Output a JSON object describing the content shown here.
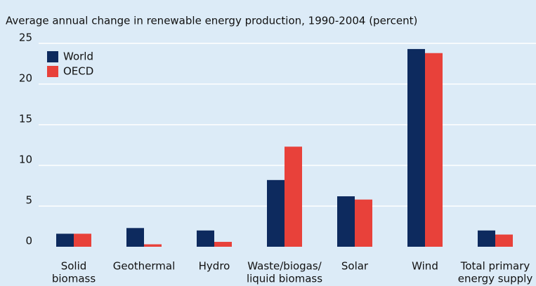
{
  "chart_data": {
    "type": "bar",
    "title": "Average annual change in renewable energy production, 1990-2004 (percent)",
    "categories": [
      [
        "Solid",
        "biomass"
      ],
      [
        "Geothermal"
      ],
      [
        "Hydro"
      ],
      [
        "Waste/biogas/",
        "liquid biomass"
      ],
      [
        "Solar"
      ],
      [
        "Wind"
      ],
      [
        "Total primary",
        "energy supply"
      ]
    ],
    "series": [
      {
        "name": "World",
        "color": "#0d2a5e",
        "values": [
          1.6,
          2.3,
          2.0,
          8.2,
          6.2,
          24.3,
          2.0
        ]
      },
      {
        "name": "OECD",
        "color": "#e8413a",
        "values": [
          1.6,
          0.3,
          0.6,
          12.3,
          5.8,
          23.8,
          1.5
        ]
      }
    ],
    "ylim": [
      0,
      25.5
    ],
    "yticks": [
      0,
      5,
      10,
      15,
      20,
      25
    ],
    "grid": true,
    "legend": "top-left"
  }
}
